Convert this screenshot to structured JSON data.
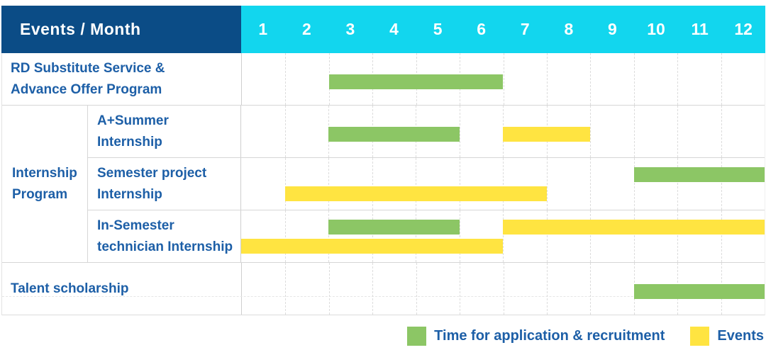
{
  "header": {
    "title": "Events / Month",
    "months": [
      "1",
      "2",
      "3",
      "4",
      "5",
      "6",
      "7",
      "8",
      "9",
      "10",
      "11",
      "12"
    ]
  },
  "labels": {
    "rd": "RD Substitute Service &\nAdvance Offer Program",
    "group": "Internship\nProgram",
    "summer": "A+Summer\nInternship",
    "semester": "Semester project\nInternship",
    "technician": "In-Semester\ntechnician Internship",
    "talent": "Talent scholarship"
  },
  "legend": {
    "application": "Time for application & recruitment",
    "events": "Events"
  },
  "colors": {
    "header_bg": "#0b4c86",
    "month_header_bg": "#12d6ee",
    "application_green": "#8cc665",
    "events_yellow": "#ffe441",
    "label_text": "#1d5fa7"
  },
  "chart_data": {
    "type": "bar",
    "subtype": "gantt",
    "title": "Events / Month",
    "x_axis": {
      "label": "Month",
      "ticks": [
        1,
        2,
        3,
        4,
        5,
        6,
        7,
        8,
        9,
        10,
        11,
        12
      ],
      "range": [
        1,
        12
      ]
    },
    "grid": "vertical dashed month lines",
    "legend_position": "bottom-right",
    "series_legend": [
      "Time for application & recruitment",
      "Events"
    ],
    "rows": [
      {
        "label": "RD Substitute Service & Advance Offer Program",
        "group": null,
        "bars": [
          {
            "series": "Time for application & recruitment",
            "start_month": 3,
            "end_month": 6,
            "lane": "single"
          }
        ]
      },
      {
        "label": "A+Summer Internship",
        "group": "Internship Program",
        "bars": [
          {
            "series": "Time for application & recruitment",
            "start_month": 3,
            "end_month": 5,
            "lane": "single"
          },
          {
            "series": "Events",
            "start_month": 7,
            "end_month": 8,
            "lane": "single"
          }
        ]
      },
      {
        "label": "Semester project Internship",
        "group": "Internship Program",
        "bars": [
          {
            "series": "Time for application & recruitment",
            "start_month": 10,
            "end_month": 12,
            "lane": "top"
          },
          {
            "series": "Events",
            "start_month": 2,
            "end_month": 7,
            "lane": "bottom"
          }
        ]
      },
      {
        "label": "In-Semester technician Internship",
        "group": "Internship Program",
        "bars": [
          {
            "series": "Time for application & recruitment",
            "start_month": 3,
            "end_month": 5,
            "lane": "top"
          },
          {
            "series": "Events",
            "start_month": 7,
            "end_month": 12,
            "lane": "top"
          },
          {
            "series": "Events",
            "start_month": 1,
            "end_month": 6,
            "lane": "bottom"
          }
        ]
      },
      {
        "label": "Talent scholarship",
        "group": null,
        "bars": [
          {
            "series": "Time for application & recruitment",
            "start_month": 10,
            "end_month": 12,
            "lane": "single"
          }
        ]
      }
    ]
  }
}
